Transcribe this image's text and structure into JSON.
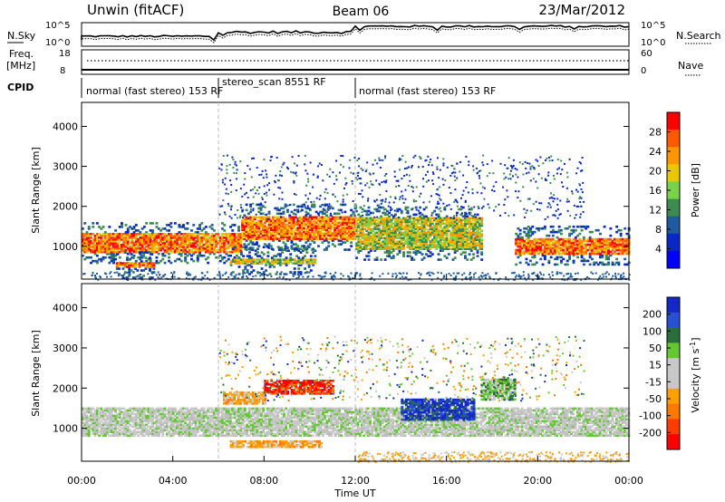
{
  "header": {
    "station": "Unwin (fitACF)",
    "beam": "Beam 06",
    "date": "23/Mar/2012"
  },
  "noise_panel": {
    "left_label": "N.Sky",
    "right_label": "N.Search",
    "ticks_left": [
      "10^5",
      "10^0"
    ],
    "ticks_right": [
      "10^5",
      "10^0"
    ]
  },
  "freq_panel": {
    "left_label_1": "Freq.",
    "left_label_2": "[MHz]",
    "right_label": "Nave",
    "ticks_left": [
      "18",
      "8"
    ],
    "ticks_right": [
      "60",
      "0"
    ]
  },
  "cpid": {
    "label": "CPID",
    "segments": [
      {
        "label": "normal (fast stereo) 153 RF",
        "start_h": 0,
        "end_h": 6
      },
      {
        "label": "stereo_scan 8551 RF",
        "start_h": 6,
        "end_h": 12
      },
      {
        "label": "normal (fast stereo) 153 RF",
        "start_h": 12,
        "end_h": 24
      }
    ]
  },
  "chart_data": [
    {
      "type": "heatmap",
      "quantity": "power",
      "xlabel": "Time UT",
      "ylabel": "Slant Range [km]",
      "xlim": [
        0,
        24
      ],
      "ylim": [
        180,
        4600
      ],
      "yticks": [
        "1000",
        "2000",
        "3000",
        "4000"
      ],
      "colorbar": {
        "label": "Power [dB]",
        "ticks": [
          "28",
          "24",
          "20",
          "16",
          "12",
          "8",
          "4"
        ],
        "colors": [
          "#ff0000",
          "#ff5a00",
          "#ff9600",
          "#e8c800",
          "#7ad24b",
          "#3c8c50",
          "#1e5aa0",
          "#0a28c8",
          "#0000ff"
        ]
      },
      "echo_regions": [
        {
          "t0": 0.0,
          "t1": 7.0,
          "r0": 820,
          "r1": 1300,
          "level": "high"
        },
        {
          "t0": 7.0,
          "t1": 12.0,
          "r0": 1150,
          "r1": 1750,
          "level": "high"
        },
        {
          "t0": 12.0,
          "t1": 17.5,
          "r0": 900,
          "r1": 1700,
          "level": "medium"
        },
        {
          "t0": 19.0,
          "t1": 24.0,
          "r0": 780,
          "r1": 1200,
          "level": "high"
        },
        {
          "t0": 1.5,
          "t1": 3.2,
          "r0": 450,
          "r1": 560,
          "level": "high"
        },
        {
          "t0": 6.5,
          "t1": 10.2,
          "r0": 540,
          "r1": 680,
          "level": "medium"
        }
      ]
    },
    {
      "type": "heatmap",
      "quantity": "velocity",
      "xlabel": "Time UT",
      "ylabel": "Slant Range [km]",
      "xlim": [
        0,
        24
      ],
      "ylim": [
        180,
        4600
      ],
      "xticks": [
        "00:00",
        "04:00",
        "08:00",
        "12:00",
        "16:00",
        "20:00",
        "00:00"
      ],
      "yticks": [
        "1000",
        "2000",
        "3000",
        "4000"
      ],
      "colorbar": {
        "label": "Velocity [m s",
        "label_exp": "-1",
        "ticks": [
          "200",
          "100",
          "50",
          "15",
          "-15",
          "-50",
          "-100",
          "-200"
        ],
        "colors": [
          "#1428c8",
          "#2850d2",
          "#2a6e3c",
          "#64c832",
          "#c8c8c8",
          "#c8c8c8",
          "#ffa000",
          "#ff7800",
          "#ff3c00",
          "#ff0000"
        ]
      },
      "echo_regions": [
        {
          "t0": 0.0,
          "t1": 24.0,
          "r0": 800,
          "r1": 1500,
          "class": "low"
        },
        {
          "t0": 8.0,
          "t1": 11.0,
          "r0": 1850,
          "r1": 2200,
          "class": "negative-fast"
        },
        {
          "t0": 6.2,
          "t1": 8.0,
          "r0": 1600,
          "r1": 1900,
          "class": "negative"
        },
        {
          "t0": 14.0,
          "t1": 17.2,
          "r0": 1200,
          "r1": 1700,
          "class": "positive-fast"
        },
        {
          "t0": 6.5,
          "t1": 10.5,
          "r0": 520,
          "r1": 700,
          "class": "negative"
        },
        {
          "t0": 17.5,
          "t1": 19.0,
          "r0": 1700,
          "r1": 2200,
          "class": "positive"
        }
      ]
    }
  ]
}
